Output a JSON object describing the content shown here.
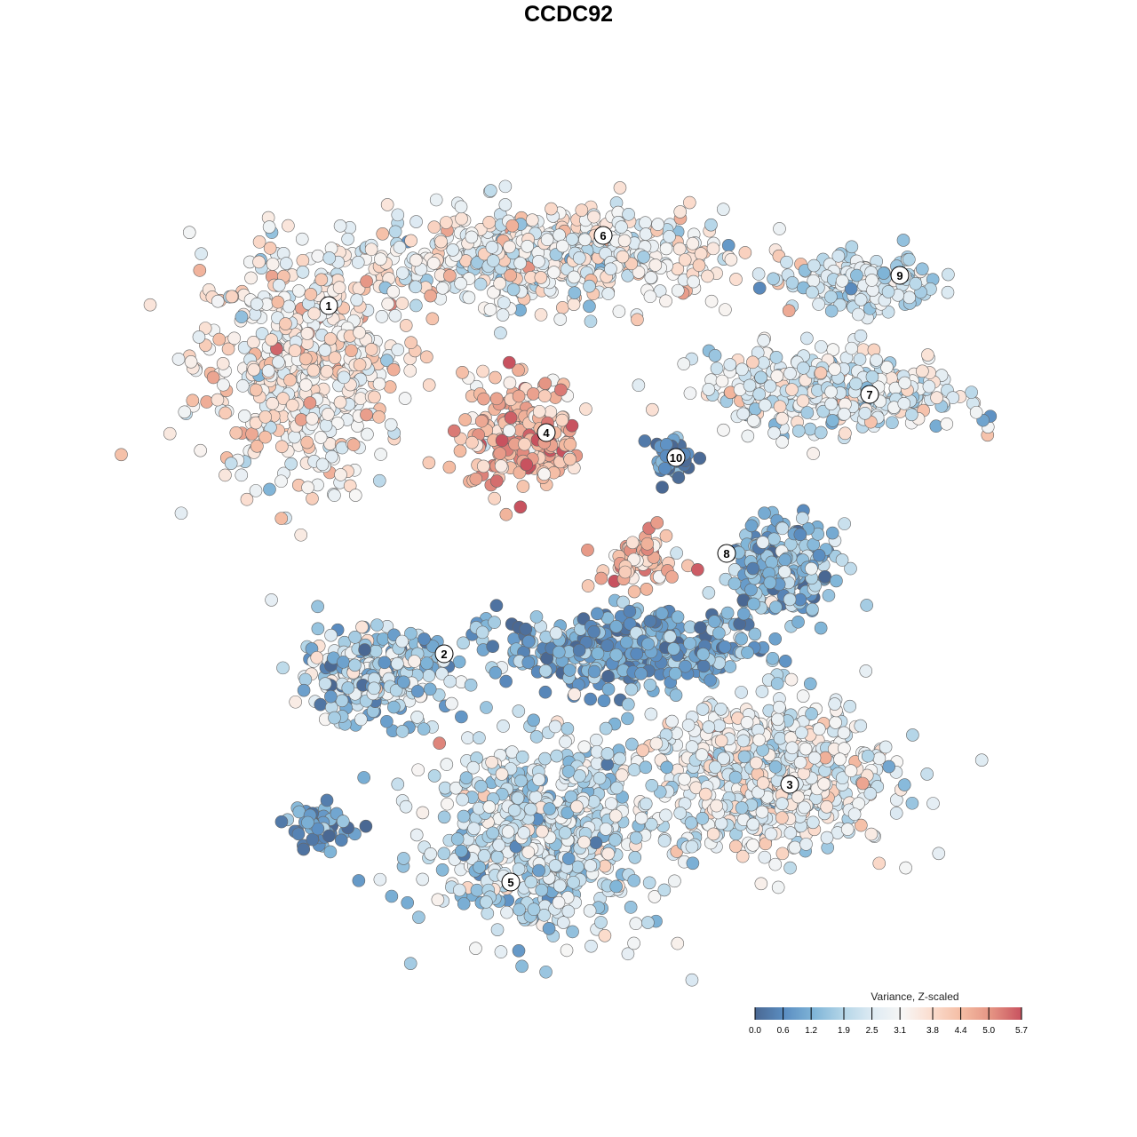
{
  "chart_data": {
    "type": "scatter",
    "title": "CCDC92",
    "xlabel": "",
    "ylabel": "",
    "xlim": [
      -45,
      50
    ],
    "ylim": [
      -46,
      46
    ],
    "grid": false,
    "legend": {
      "title": "Variance, Z-scaled",
      "placement": "bottom-right",
      "ticks": [
        "0.0",
        "0.6",
        "1.2",
        "1.9",
        "2.5",
        "3.1",
        "3.8",
        "4.4",
        "5.0",
        "5.7"
      ],
      "range": [
        0,
        5.7
      ],
      "colors": [
        "#4a6893",
        "#5b8ec2",
        "#80b5d8",
        "#b5d6e8",
        "#dfebf3",
        "#f7f6f5",
        "#fbdccd",
        "#f4bba2",
        "#e49282",
        "#c8525f"
      ]
    },
    "clusters": [
      {
        "label": "1",
        "label_pos": [
          -27,
          29.6
        ],
        "center": [
          -30,
          23
        ],
        "spread": [
          10,
          11
        ],
        "n": 520,
        "mean": 3.3,
        "sd": 0.7
      },
      {
        "label": "6",
        "label_pos": [
          3.9,
          37.5
        ],
        "center": [
          -3,
          35
        ],
        "spread": [
          17,
          4.5
        ],
        "n": 560,
        "mean": 2.9,
        "sd": 0.8
      },
      {
        "label": "4",
        "label_pos": [
          -2.5,
          15.3
        ],
        "center": [
          -5,
          15
        ],
        "spread": [
          5.5,
          5.5
        ],
        "n": 230,
        "mean": 4.5,
        "sd": 0.7
      },
      {
        "label": "10",
        "label_pos": [
          12.1,
          12.5
        ],
        "center": [
          11.5,
          12.5
        ],
        "spread": [
          2,
          2
        ],
        "n": 40,
        "mean": 0.6,
        "sd": 0.5
      },
      {
        "label": "9",
        "label_pos": [
          37.3,
          33
        ],
        "center": [
          33,
          32
        ],
        "spread": [
          6.5,
          2.5
        ],
        "n": 150,
        "mean": 2.2,
        "sd": 0.7
      },
      {
        "label": "7",
        "label_pos": [
          33.9,
          19.6
        ],
        "center": [
          30,
          20
        ],
        "spread": [
          12,
          4
        ],
        "n": 330,
        "mean": 2.6,
        "sd": 0.8
      },
      {
        "label": "8",
        "label_pos": [
          17.8,
          1.7
        ],
        "center": [
          24,
          0
        ],
        "spread": [
          5,
          4
        ],
        "n": 230,
        "mean": 1.4,
        "sd": 0.7
      },
      {
        "label": "",
        "label_pos": null,
        "center": [
          8,
          1
        ],
        "spread": [
          4,
          2.5
        ],
        "n": 70,
        "mean": 4.2,
        "sd": 0.8
      },
      {
        "label": "",
        "label_pos": null,
        "center": [
          7,
          -9
        ],
        "spread": [
          12,
          3.5
        ],
        "n": 420,
        "mean": 1.0,
        "sd": 0.7
      },
      {
        "label": "2",
        "label_pos": [
          -14,
          -9.6
        ],
        "center": [
          -22,
          -12
        ],
        "spread": [
          7,
          4.5
        ],
        "n": 260,
        "mean": 1.8,
        "sd": 0.9
      },
      {
        "label": "3",
        "label_pos": [
          24.9,
          -24.3
        ],
        "center": [
          23,
          -23
        ],
        "spread": [
          11,
          7
        ],
        "n": 620,
        "mean": 2.8,
        "sd": 0.7
      },
      {
        "label": "5",
        "label_pos": [
          -6.5,
          -35.3
        ],
        "center": [
          -3,
          -30
        ],
        "spread": [
          11,
          9
        ],
        "n": 650,
        "mean": 2.2,
        "sd": 0.7
      },
      {
        "label": "",
        "label_pos": null,
        "center": [
          -28,
          -29
        ],
        "spread": [
          3.5,
          2
        ],
        "n": 45,
        "mean": 0.7,
        "sd": 0.5
      }
    ]
  }
}
